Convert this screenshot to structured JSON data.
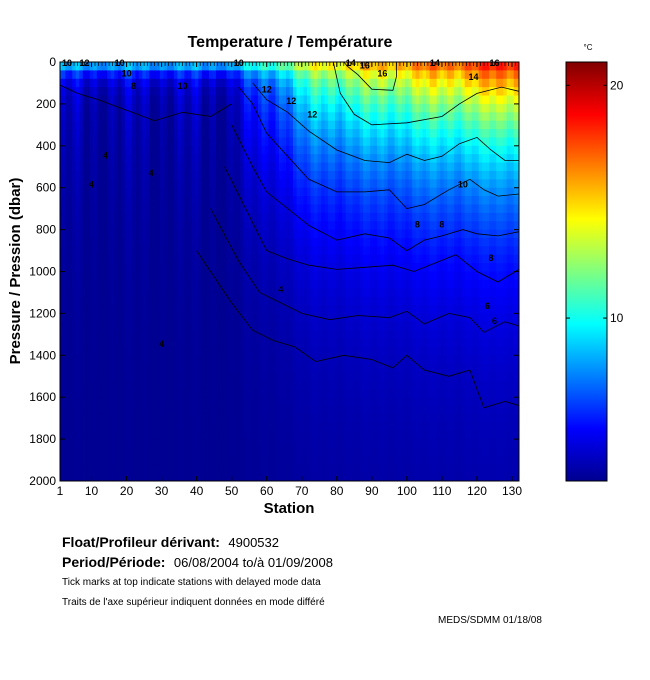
{
  "chart_data": {
    "type": "heatmap",
    "title": "Temperature / Température",
    "xlabel": "Station",
    "ylabel": "Pressure / Pression (dbar)",
    "xlim": [
      1,
      132
    ],
    "ylim": [
      2000,
      0
    ],
    "x_ticks": [
      1,
      10,
      20,
      30,
      40,
      50,
      60,
      70,
      80,
      90,
      100,
      110,
      120,
      130
    ],
    "y_ticks": [
      0,
      200,
      400,
      600,
      800,
      1000,
      1200,
      1400,
      1600,
      1800,
      2000
    ],
    "colorbar": {
      "unit": "°C",
      "range": [
        3,
        21
      ],
      "ticks": [
        10,
        20
      ],
      "colormap": "jet"
    },
    "contour_labels": [
      {
        "text": "10",
        "x": 3,
        "y": 20
      },
      {
        "text": "12",
        "x": 8,
        "y": 20
      },
      {
        "text": "10",
        "x": 18,
        "y": 20
      },
      {
        "text": "10",
        "x": 20,
        "y": 70
      },
      {
        "text": "8",
        "x": 22,
        "y": 130
      },
      {
        "text": "4",
        "x": 14,
        "y": 460
      },
      {
        "text": "4",
        "x": 10,
        "y": 600
      },
      {
        "text": "4",
        "x": 27,
        "y": 545
      },
      {
        "text": "10",
        "x": 36,
        "y": 130
      },
      {
        "text": "10",
        "x": 52,
        "y": 20
      },
      {
        "text": "12",
        "x": 60,
        "y": 145
      },
      {
        "text": "12",
        "x": 67,
        "y": 200
      },
      {
        "text": "12",
        "x": 73,
        "y": 265
      },
      {
        "text": "14",
        "x": 84,
        "y": 20
      },
      {
        "text": "16",
        "x": 88,
        "y": 30
      },
      {
        "text": "16",
        "x": 93,
        "y": 70
      },
      {
        "text": "14",
        "x": 108,
        "y": 20
      },
      {
        "text": "14",
        "x": 119,
        "y": 85
      },
      {
        "text": "16",
        "x": 125,
        "y": 20
      },
      {
        "text": "10",
        "x": 116,
        "y": 600
      },
      {
        "text": "8",
        "x": 103,
        "y": 790
      },
      {
        "text": "8",
        "x": 110,
        "y": 790
      },
      {
        "text": "8",
        "x": 124,
        "y": 950
      },
      {
        "text": "6",
        "x": 123,
        "y": 1180
      },
      {
        "text": "6",
        "x": 125,
        "y": 1250
      },
      {
        "text": "4",
        "x": 64,
        "y": 1100
      },
      {
        "text": "4",
        "x": 30,
        "y": 1360
      }
    ],
    "isotherms": [
      {
        "level": 16,
        "points": [
          [
            82,
            0
          ],
          [
            83,
            20
          ],
          [
            86,
            60
          ],
          [
            90,
            130
          ],
          [
            96,
            135
          ],
          [
            97,
            70
          ],
          [
            97,
            0
          ]
        ]
      },
      {
        "level": 14,
        "points": [
          [
            79,
            0
          ],
          [
            81,
            150
          ],
          [
            85,
            250
          ],
          [
            90,
            300
          ],
          [
            100,
            290
          ],
          [
            110,
            260
          ],
          [
            115,
            200
          ],
          [
            120,
            150
          ],
          [
            127,
            120
          ],
          [
            132,
            140
          ]
        ]
      },
      {
        "level": 12,
        "points": [
          [
            56,
            100
          ],
          [
            60,
            180
          ],
          [
            66,
            240
          ],
          [
            72,
            330
          ],
          [
            80,
            420
          ],
          [
            88,
            470
          ],
          [
            95,
            480
          ],
          [
            100,
            440
          ],
          [
            105,
            470
          ],
          [
            110,
            450
          ],
          [
            115,
            390
          ],
          [
            120,
            360
          ],
          [
            124,
            420
          ],
          [
            128,
            470
          ],
          [
            132,
            470
          ]
        ]
      },
      {
        "level": 10,
        "points": [
          [
            52,
            120
          ],
          [
            56,
            200
          ],
          [
            60,
            340
          ],
          [
            66,
            450
          ],
          [
            72,
            560
          ],
          [
            80,
            620
          ],
          [
            88,
            620
          ],
          [
            95,
            610
          ],
          [
            100,
            700
          ],
          [
            105,
            680
          ],
          [
            112,
            610
          ],
          [
            118,
            560
          ],
          [
            122,
            610
          ],
          [
            126,
            640
          ],
          [
            132,
            630
          ]
        ]
      },
      {
        "level": 8,
        "points": [
          [
            50,
            300
          ],
          [
            56,
            500
          ],
          [
            60,
            620
          ],
          [
            66,
            700
          ],
          [
            72,
            780
          ],
          [
            80,
            850
          ],
          [
            88,
            820
          ],
          [
            95,
            840
          ],
          [
            100,
            900
          ],
          [
            105,
            850
          ],
          [
            110,
            830
          ],
          [
            116,
            800
          ],
          [
            120,
            820
          ],
          [
            126,
            830
          ],
          [
            132,
            810
          ]
        ]
      },
      {
        "level": 6,
        "points": [
          [
            48,
            500
          ],
          [
            54,
            700
          ],
          [
            60,
            900
          ],
          [
            66,
            940
          ],
          [
            72,
            970
          ],
          [
            80,
            990
          ],
          [
            88,
            980
          ],
          [
            96,
            970
          ],
          [
            102,
            1000
          ],
          [
            108,
            960
          ],
          [
            114,
            920
          ],
          [
            120,
            1000
          ],
          [
            126,
            1050
          ],
          [
            132,
            990
          ]
        ]
      },
      {
        "level": 5,
        "points": [
          [
            44,
            700
          ],
          [
            52,
            950
          ],
          [
            58,
            1100
          ],
          [
            64,
            1150
          ],
          [
            70,
            1200
          ],
          [
            78,
            1230
          ],
          [
            86,
            1210
          ],
          [
            95,
            1220
          ],
          [
            100,
            1190
          ],
          [
            105,
            1250
          ],
          [
            112,
            1200
          ],
          [
            118,
            1220
          ],
          [
            122,
            1290
          ],
          [
            128,
            1240
          ],
          [
            132,
            1260
          ]
        ]
      },
      {
        "level": 4,
        "points": [
          [
            40,
            900
          ],
          [
            50,
            1150
          ],
          [
            56,
            1280
          ],
          [
            62,
            1330
          ],
          [
            68,
            1360
          ],
          [
            74,
            1430
          ],
          [
            82,
            1400
          ],
          [
            90,
            1420
          ],
          [
            96,
            1460
          ],
          [
            100,
            1400
          ],
          [
            105,
            1470
          ],
          [
            112,
            1500
          ],
          [
            118,
            1470
          ],
          [
            122,
            1650
          ],
          [
            128,
            1620
          ],
          [
            132,
            1640
          ]
        ]
      },
      {
        "level": 4,
        "points": [
          [
            1,
            110
          ],
          [
            6,
            150
          ],
          [
            12,
            180
          ],
          [
            20,
            230
          ],
          [
            28,
            280
          ],
          [
            36,
            240
          ],
          [
            44,
            260
          ],
          [
            50,
            200
          ]
        ]
      }
    ],
    "delayed_mode_stations": [
      3,
      4,
      5,
      6,
      7,
      8,
      9,
      10,
      11,
      12,
      13,
      14,
      15,
      16,
      17,
      18,
      19,
      20,
      21,
      22,
      23,
      24,
      25,
      26,
      27,
      28,
      29,
      30,
      31,
      32,
      33,
      34,
      35,
      36,
      37,
      38,
      39,
      40,
      41,
      42,
      43,
      44,
      45,
      46,
      47,
      48,
      49,
      50,
      51,
      52,
      53,
      54,
      55,
      56,
      57,
      58,
      59,
      60,
      61,
      62,
      63,
      64,
      65,
      66,
      67,
      68,
      69,
      70,
      71,
      72,
      73,
      74,
      75,
      76,
      77,
      78,
      79,
      80,
      81,
      82,
      83,
      84,
      85,
      86,
      87,
      88,
      89,
      90,
      91,
      92,
      93,
      94,
      95,
      96,
      97,
      98,
      99,
      100,
      101,
      102,
      103,
      104,
      105,
      106,
      107,
      108,
      109,
      110,
      111,
      112,
      113,
      114,
      115,
      116,
      117,
      118,
      119,
      120,
      121,
      122,
      123,
      124,
      125,
      126,
      127,
      128,
      129,
      130,
      131,
      132
    ]
  },
  "float": {
    "label": "Float/Profileur dérivant:",
    "value": "4900532"
  },
  "period": {
    "label": "Period/Période:",
    "value": "06/08/2004  to/à  01/09/2008"
  },
  "notes": {
    "tick_marks_en": "Tick marks at top indicate stations with delayed mode data",
    "tick_marks_fr": "Traits de l'axe supérieur indiquent données en mode différé"
  },
  "credit": "MEDS/SDMM  01/18/08"
}
